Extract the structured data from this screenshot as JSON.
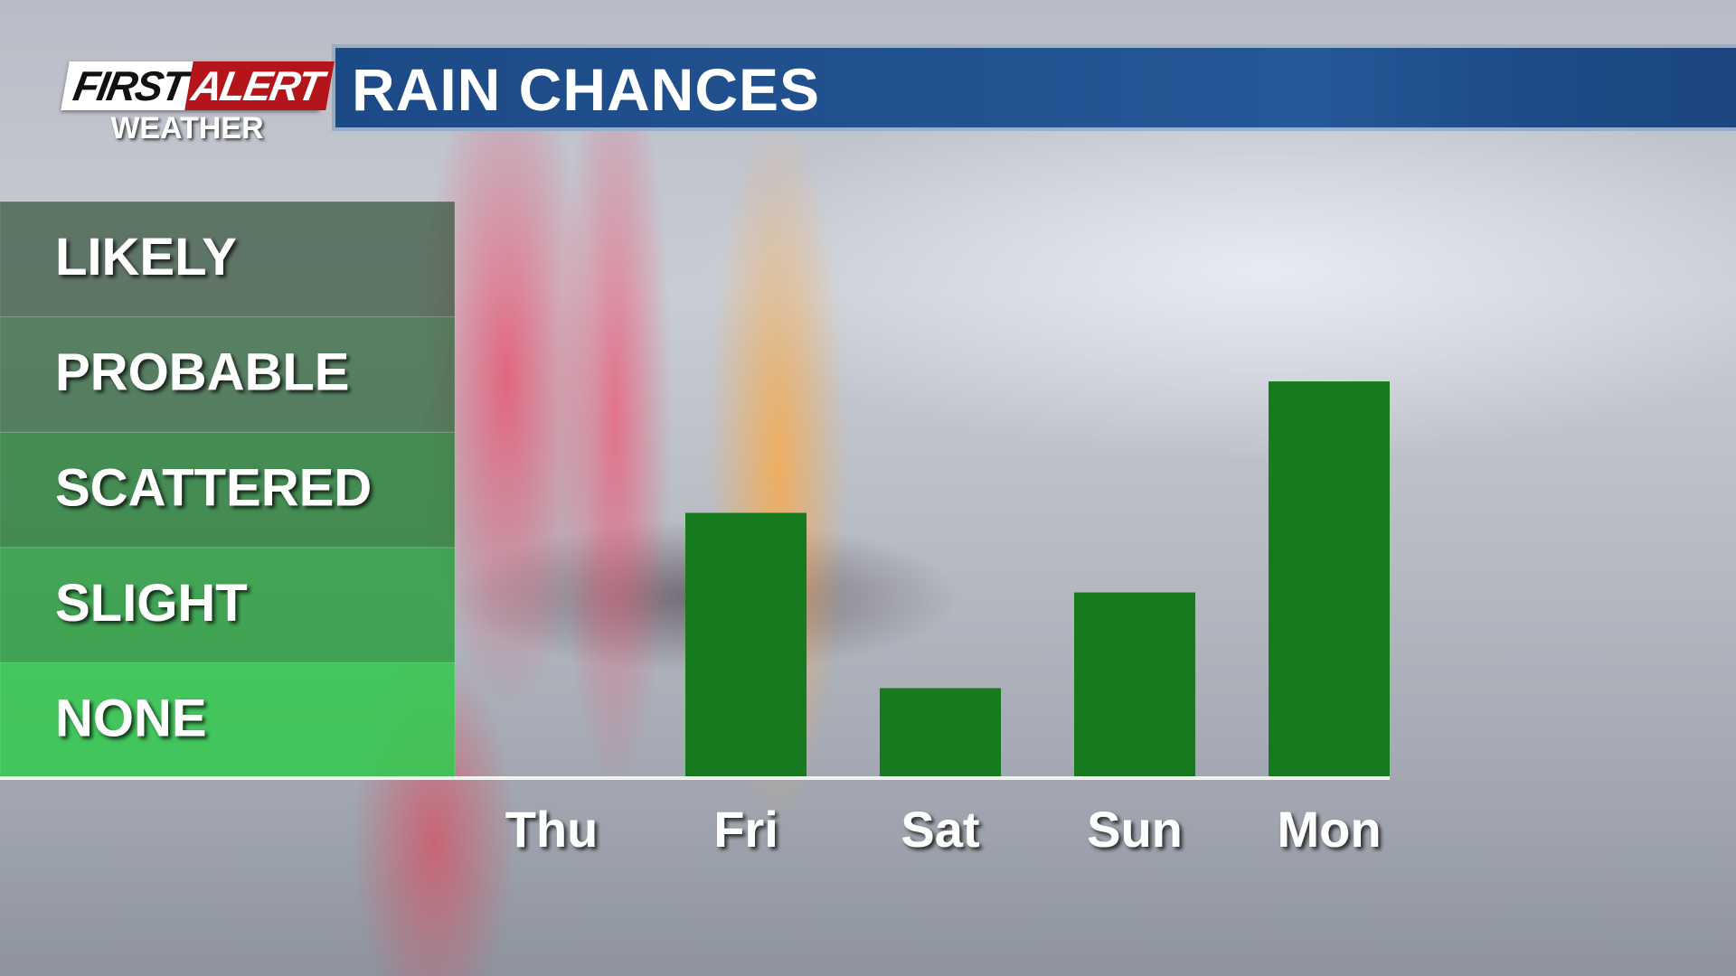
{
  "branding": {
    "first": "FIRST",
    "alert": "ALERT",
    "sub": "WEATHER"
  },
  "chart_data": {
    "type": "bar",
    "title": "RAIN CHANCES",
    "categories": [
      "Thu",
      "Fri",
      "Sat",
      "Sun",
      "Mon"
    ],
    "values": [
      0,
      2.3,
      0.78,
      1.61,
      3.44
    ],
    "color": "#177a1f",
    "ylim": [
      0,
      5
    ],
    "yticks": [
      {
        "value": 0.5,
        "label": "NONE"
      },
      {
        "value": 1.5,
        "label": "SLIGHT"
      },
      {
        "value": 2.5,
        "label": "SCATTERED"
      },
      {
        "value": 3.5,
        "label": "PROBABLE"
      },
      {
        "value": 4.5,
        "label": "LIKELY"
      }
    ]
  }
}
